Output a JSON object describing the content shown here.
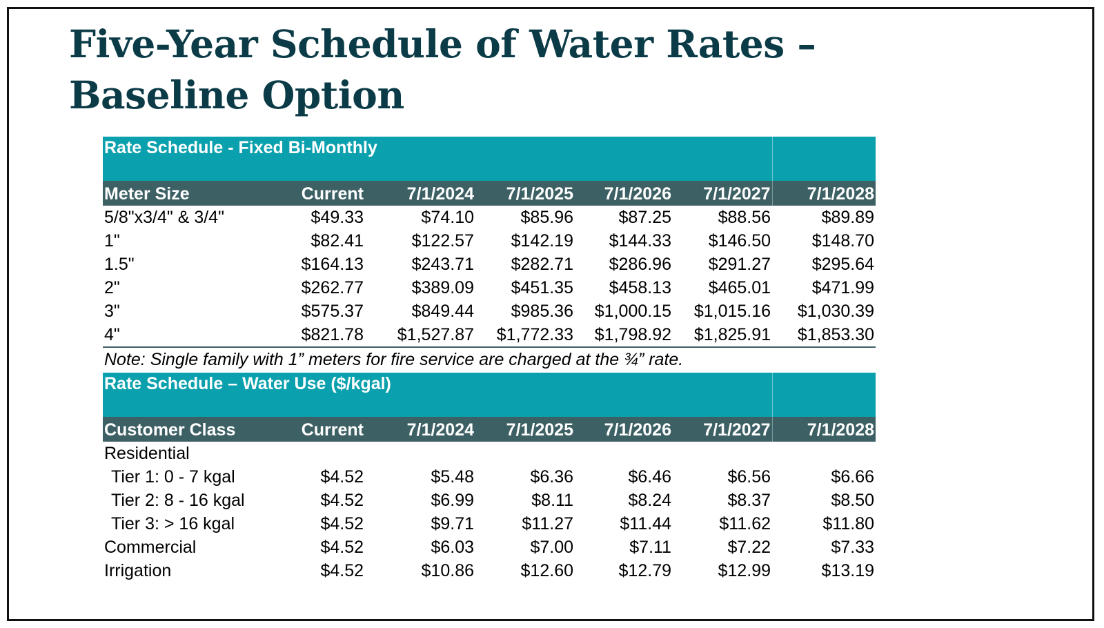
{
  "title": {
    "line1": "Five-Year Schedule of Water Rates –",
    "line2": "Baseline Option"
  },
  "fixed_table": {
    "band_label": "Rate Schedule - Fixed Bi-Monthly",
    "columns": [
      "Meter Size",
      "Current",
      "7/1/2024",
      "7/1/2025",
      "7/1/2026",
      "7/1/2027",
      "7/1/2028"
    ],
    "rows": [
      [
        "5/8\"x3/4\" & 3/4\"",
        "$49.33",
        "$74.10",
        "$85.96",
        "$87.25",
        "$88.56",
        "$89.89"
      ],
      [
        "1\"",
        "$82.41",
        "$122.57",
        "$142.19",
        "$144.33",
        "$146.50",
        "$148.70"
      ],
      [
        "1.5\"",
        "$164.13",
        "$243.71",
        "$282.71",
        "$286.96",
        "$291.27",
        "$295.64"
      ],
      [
        "2\"",
        "$262.77",
        "$389.09",
        "$451.35",
        "$458.13",
        "$465.01",
        "$471.99"
      ],
      [
        "3\"",
        "$575.37",
        "$849.44",
        "$985.36",
        "$1,000.15",
        "$1,015.16",
        "$1,030.39"
      ],
      [
        "4\"",
        "$821.78",
        "$1,527.87",
        "$1,772.33",
        "$1,798.92",
        "$1,825.91",
        "$1,853.30"
      ]
    ],
    "note": "Note: Single family with 1” meters for fire service are charged at the ¾” rate."
  },
  "use_table": {
    "band_label": "Rate Schedule – Water Use ($/kgal)",
    "columns": [
      "Customer Class",
      "Current",
      "7/1/2024",
      "7/1/2025",
      "7/1/2026",
      "7/1/2027",
      "7/1/2028"
    ],
    "rows": [
      [
        "Residential",
        "",
        "",
        "",
        "",
        "",
        ""
      ],
      [
        "Tier 1: 0 - 7 kgal",
        "$4.52",
        "$5.48",
        "$6.36",
        "$6.46",
        "$6.56",
        "$6.66"
      ],
      [
        "Tier 2: 8 - 16 kgal",
        "$4.52",
        "$6.99",
        "$8.11",
        "$8.24",
        "$8.37",
        "$8.50"
      ],
      [
        "Tier 3: > 16 kgal",
        "$4.52",
        "$9.71",
        "$11.27",
        "$11.44",
        "$11.62",
        "$11.80"
      ],
      [
        "Commercial",
        "$4.52",
        "$6.03",
        "$7.00",
        "$7.11",
        "$7.22",
        "$7.33"
      ],
      [
        "Irrigation",
        "$4.52",
        "$10.86",
        "$12.60",
        "$12.79",
        "$12.99",
        "$13.19"
      ]
    ]
  },
  "colors": {
    "title": "#0b3b47",
    "band": "#0aa0ad",
    "header": "#3d6064"
  }
}
